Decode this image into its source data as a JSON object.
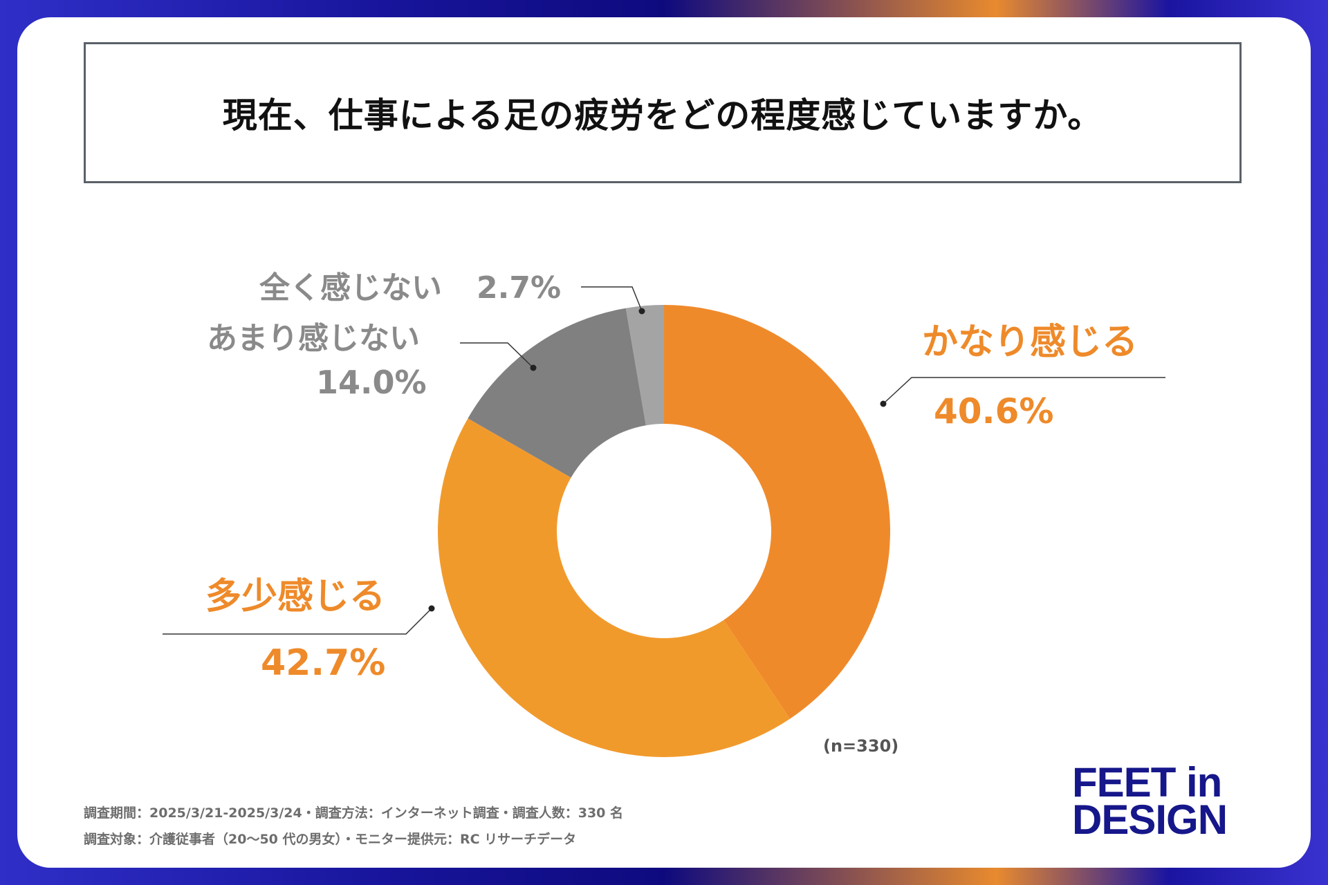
{
  "title": "現在、仕事による足の疲労をどの程度感じていますか。",
  "chart_data": {
    "type": "pie",
    "variant": "donut",
    "title": "現在、仕事による足の疲労をどの程度感じていますか。",
    "categories": [
      "かなり感じる",
      "多少感じる",
      "あまり感じない",
      "全く感じない"
    ],
    "values": [
      40.6,
      42.7,
      14.0,
      2.7
    ],
    "value_labels": [
      "40.6%",
      "42.7%",
      "14.0%",
      "2.7%"
    ],
    "colors": [
      "#ef8a2b",
      "#f19a2c",
      "#808080",
      "#a4a4a4"
    ],
    "start_angle_deg": 0,
    "direction": "clockwise",
    "exploded": [
      "多少感じる"
    ],
    "note": "(n=330)"
  },
  "labels": {
    "very": {
      "name": "かなり感じる",
      "value": "40.6%"
    },
    "somewhat": {
      "name": "多少感じる",
      "value": "42.7%"
    },
    "not_much": {
      "name": "あまり感じない",
      "value": "14.0%"
    },
    "not_at_all": {
      "name": "全く感じない",
      "value": "2.7%"
    }
  },
  "footnote": {
    "line1": "調査期間：2025/3/21-2025/3/24・調査方法：インターネット調査・調査人数：330 名",
    "line2": "調査対象：介護従事者（20〜50 代の男女）・モニター提供元：RC リサーチデータ"
  },
  "logo": {
    "line1": "FEET in",
    "line2": "DESIGN"
  }
}
